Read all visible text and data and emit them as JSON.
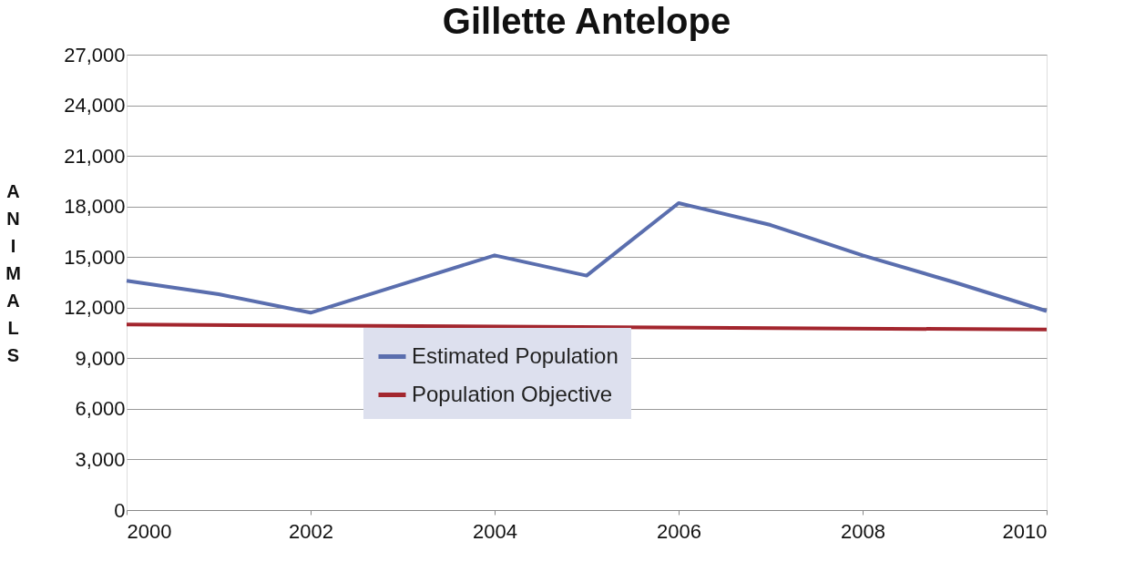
{
  "chart_data": {
    "type": "line",
    "title": "Gillette Antelope",
    "ylabel": "ANIMALS",
    "series": [
      {
        "name": "Estimated Population",
        "color": "#5a6eae",
        "x": [
          2000,
          2001,
          2002,
          2003,
          2004,
          2005,
          2006,
          2007,
          2008,
          2009,
          2010
        ],
        "values": [
          13600,
          12800,
          11700,
          13400,
          15100,
          13900,
          18200,
          16900,
          15100,
          13500,
          11800
        ]
      },
      {
        "name": "Population Objective",
        "color": "#a3262e",
        "x": [
          2000,
          2010
        ],
        "values": [
          11000,
          10700
        ]
      }
    ],
    "xlim": [
      2000,
      2010
    ],
    "xticks": [
      2000,
      2002,
      2004,
      2006,
      2008,
      2010
    ],
    "ylim": [
      0,
      27000
    ],
    "yticks": [
      0,
      {
        "value": 3000,
        "label": "3,000"
      },
      {
        "value": 6000,
        "label": "6,000"
      },
      {
        "value": 9000,
        "label": "9,000"
      },
      {
        "value": 12000,
        "label": "12,000"
      },
      {
        "value": 15000,
        "label": "15,000"
      },
      {
        "value": 18000,
        "label": "18,000"
      },
      {
        "value": 21000,
        "label": "21,000"
      },
      {
        "value": 24000,
        "label": "24,000"
      },
      {
        "value": 27000,
        "label": "27,000"
      }
    ],
    "grid": "y",
    "legend": "bottom",
    "marker": "none",
    "line_style": "solid"
  }
}
